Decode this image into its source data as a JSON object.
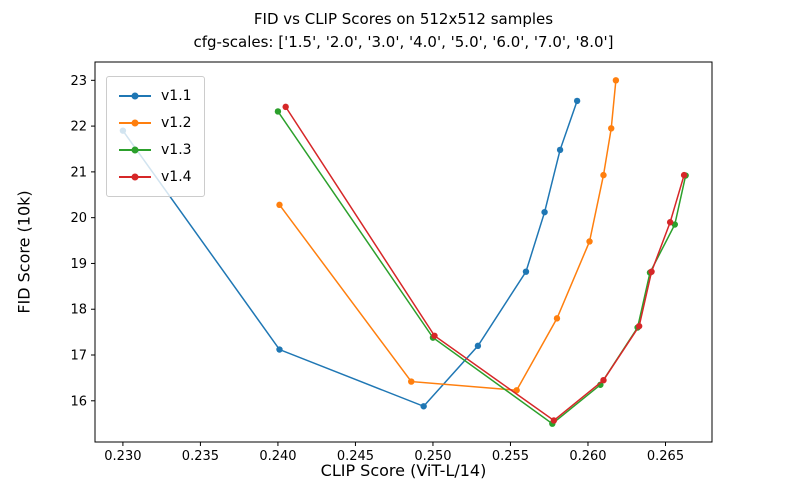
{
  "chart_data": {
    "type": "line",
    "title": "FID vs CLIP Scores on 512x512 samples",
    "subtitle": "cfg-scales: ['1.5', '2.0', '3.0', '4.0', '5.0', '6.0', '7.0', '8.0']",
    "xlabel": "CLIP Score (ViT-L/14)",
    "ylabel": "FID Score (10k)",
    "xlim": [
      0.2282,
      0.268
    ],
    "ylim": [
      15.1,
      23.4
    ],
    "x_ticks": [
      0.23,
      0.235,
      0.24,
      0.245,
      0.25,
      0.255,
      0.26,
      0.265
    ],
    "x_tick_labels": [
      "0.230",
      "0.235",
      "0.240",
      "0.245",
      "0.250",
      "0.255",
      "0.260",
      "0.265"
    ],
    "y_ticks": [
      16,
      17,
      18,
      19,
      20,
      21,
      22,
      23
    ],
    "y_tick_labels": [
      "16",
      "17",
      "18",
      "19",
      "20",
      "21",
      "22",
      "23"
    ],
    "cfg_scales": [
      "1.5",
      "2.0",
      "3.0",
      "4.0",
      "5.0",
      "6.0",
      "7.0",
      "8.0"
    ],
    "grid": false,
    "marker": "circle",
    "legend_position": "upper-left",
    "series": [
      {
        "name": "v1.1",
        "color": "#1f77b4",
        "points": [
          [
            0.23,
            21.9
          ],
          [
            0.2401,
            17.12
          ],
          [
            0.2494,
            15.88
          ],
          [
            0.2529,
            17.2
          ],
          [
            0.256,
            18.82
          ],
          [
            0.2572,
            20.12
          ],
          [
            0.2582,
            21.48
          ],
          [
            0.2593,
            22.55
          ]
        ]
      },
      {
        "name": "v1.2",
        "color": "#ff7f0e",
        "points": [
          [
            0.2401,
            20.28
          ],
          [
            0.2486,
            16.42
          ],
          [
            0.2554,
            16.23
          ],
          [
            0.258,
            17.8
          ],
          [
            0.2601,
            19.48
          ],
          [
            0.261,
            20.93
          ],
          [
            0.2615,
            21.95
          ],
          [
            0.2618,
            23.0
          ]
        ]
      },
      {
        "name": "v1.3",
        "color": "#2ca02c",
        "points": [
          [
            0.24,
            22.32
          ],
          [
            0.25,
            17.38
          ],
          [
            0.2577,
            15.5
          ],
          [
            0.2608,
            16.35
          ],
          [
            0.2632,
            17.6
          ],
          [
            0.264,
            18.8
          ],
          [
            0.2656,
            19.85
          ],
          [
            0.2663,
            20.92
          ]
        ]
      },
      {
        "name": "v1.4",
        "color": "#d62728",
        "points": [
          [
            0.2405,
            22.42
          ],
          [
            0.2501,
            17.42
          ],
          [
            0.2578,
            15.57
          ],
          [
            0.261,
            16.45
          ],
          [
            0.2633,
            17.63
          ],
          [
            0.2641,
            18.82
          ],
          [
            0.2653,
            19.9
          ],
          [
            0.2662,
            20.93
          ]
        ]
      }
    ]
  }
}
